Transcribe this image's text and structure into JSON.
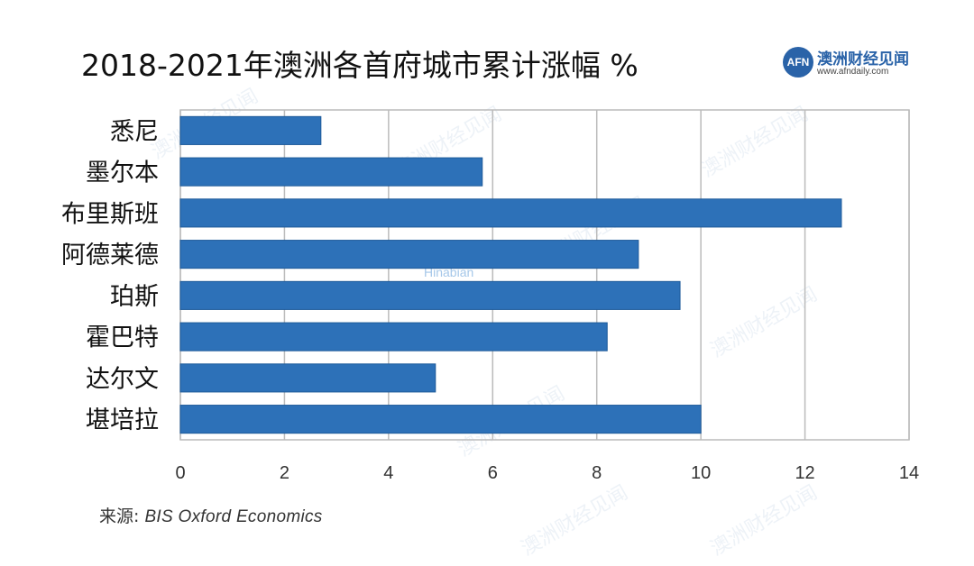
{
  "title": "2018-2021年澳洲各首府城市累计涨幅 %",
  "logo": {
    "mark": "AFN",
    "name": "澳洲财经见闻",
    "url": "www.afndaily.com"
  },
  "source": {
    "prefix": "来源:",
    "name": "BIS Oxford Economics"
  },
  "watermark": {
    "text": "澳洲财经见闻",
    "hinabian": "Hinabian"
  },
  "colors": {
    "bar": "#2d71b8",
    "bar_stroke": "#1d5a9a",
    "grid": "#bbbbbb",
    "axis_text": "#333333",
    "label_text": "#111111"
  },
  "chart_data": {
    "type": "bar",
    "orientation": "horizontal",
    "categories": [
      "悉尼",
      "墨尔本",
      "布里斯班",
      "阿德莱德",
      "珀斯",
      "霍巴特",
      "达尔文",
      "堪培拉"
    ],
    "values": [
      2.7,
      5.8,
      12.7,
      8.8,
      9.6,
      8.2,
      4.9,
      10.0
    ],
    "title": "2018-2021年澳洲各首府城市累计涨幅 %",
    "xlabel": "",
    "ylabel": "",
    "xlim": [
      0,
      14
    ],
    "xticks": [
      0,
      2,
      4,
      6,
      8,
      10,
      12,
      14
    ],
    "grid": true,
    "legend": "none"
  }
}
